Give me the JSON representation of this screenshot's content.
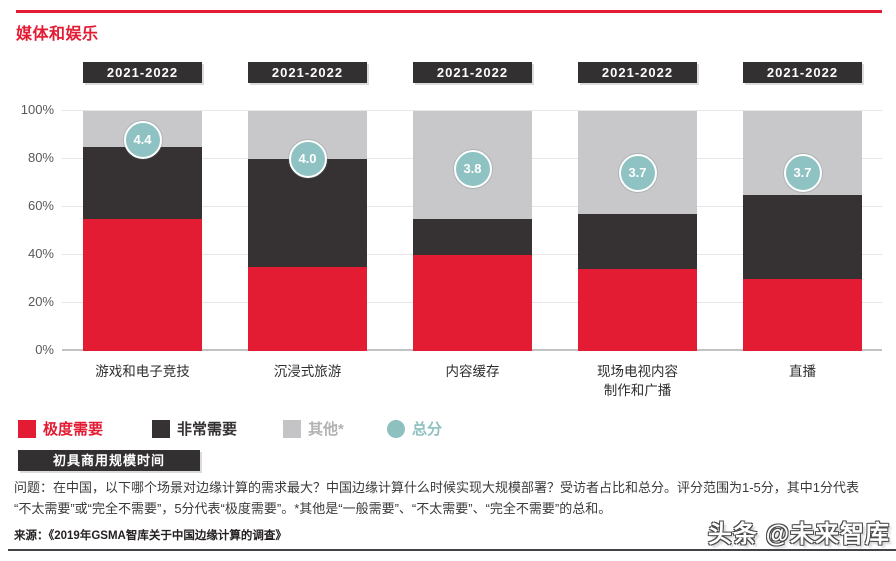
{
  "header": {
    "title": "媒体和娱乐"
  },
  "chart_data": {
    "type": "bar",
    "stacked": true,
    "title": "媒体和娱乐",
    "column_header": "2021-2022",
    "categories": [
      "游戏和电子竞技",
      "沉浸式旅游",
      "内容缓存",
      "现场电视内容\n制作和广播",
      "直播"
    ],
    "series": [
      {
        "name": "极度需要",
        "color": "#e31b33",
        "values": [
          55,
          35,
          40,
          34,
          30
        ]
      },
      {
        "name": "非常需要",
        "color": "#363233",
        "values": [
          30,
          45,
          15,
          23,
          35
        ]
      },
      {
        "name": "其他*",
        "color": "#c8c8ca",
        "values": [
          15,
          20,
          45,
          43,
          35
        ]
      }
    ],
    "scores": {
      "name": "总分",
      "color": "#8fc2c2",
      "values": [
        4.4,
        4.0,
        3.8,
        3.7,
        3.7
      ],
      "labels": [
        "4.4",
        "4.0",
        "3.8",
        "3.7",
        "3.7"
      ],
      "scale_max": 5
    },
    "ylim": [
      0,
      100
    ],
    "yticks": [
      "0%",
      "20%",
      "40%",
      "60%",
      "80%",
      "100%"
    ],
    "grid": true,
    "legend_position": "bottom"
  },
  "legend": {
    "items": [
      {
        "label": "极度需要",
        "color": "#e31b33",
        "text_color": "#e31b33",
        "shape": "square"
      },
      {
        "label": "非常需要",
        "color": "#363233",
        "text_color": "#363233",
        "shape": "square"
      },
      {
        "label": "其他*",
        "color": "#c4c4c6",
        "text_color": "#b2b2b4",
        "shape": "square"
      },
      {
        "label": "总分",
        "color": "#8fc0c0",
        "text_color": "#8fc0c0",
        "shape": "circle"
      }
    ]
  },
  "section_badge": "初具商用规模时间",
  "question": {
    "lines": [
      "问题：在中国，以下哪个场景对边缘计算的需求最大？中国边缘计算什么时候实现大规模部署？受访者占比和总分。评分范围为1-5分，其中1分代表",
      "“不太需要”或“完全不需要”，5分代表“极度需要”。*其他是“一般需要”、“不太需要”、“完全不需要”的总和。"
    ]
  },
  "source": "来源：《2019年GSMA智库关于中国边缘计算的调查》",
  "watermark": "头条 @未来智库"
}
